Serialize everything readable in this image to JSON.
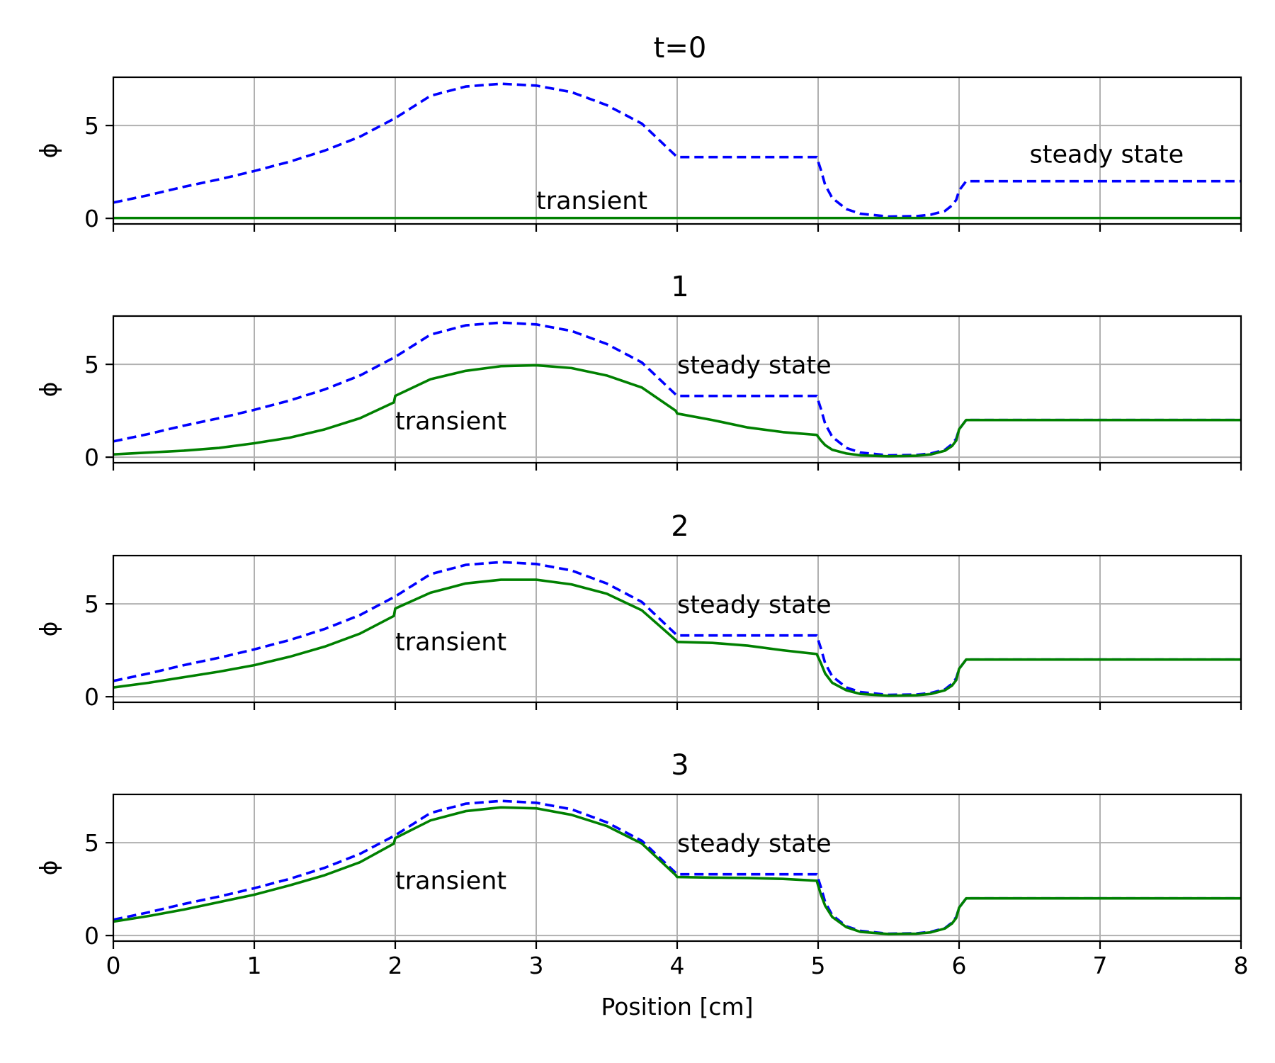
{
  "chart_data": [
    {
      "type": "line",
      "title": "t=0",
      "ylabel": "ϕ",
      "xlim": [
        0,
        8
      ],
      "ylim": [
        -0.3,
        7.6
      ],
      "xticks": [
        0,
        1,
        2,
        3,
        4,
        5,
        6,
        7,
        8
      ],
      "yticks": [
        0,
        5
      ],
      "xtick_labels_visible": false,
      "grid": true,
      "series": [
        {
          "role": "steady",
          "color": "#0000ff",
          "style": "dashed",
          "x": [
            0,
            0.25,
            0.5,
            0.75,
            1.0,
            1.25,
            1.5,
            1.75,
            2.0,
            2.25,
            2.5,
            2.75,
            3.0,
            3.25,
            3.5,
            3.75,
            4.0,
            4.5,
            4.99,
            5.02,
            5.05,
            5.1,
            5.2,
            5.3,
            5.5,
            5.7,
            5.8,
            5.9,
            5.95,
            5.98,
            6.0,
            6.05,
            6.5,
            7.0,
            7.5,
            8.0
          ],
          "y": [
            0.85,
            1.25,
            1.7,
            2.1,
            2.55,
            3.05,
            3.65,
            4.4,
            5.4,
            6.6,
            7.1,
            7.25,
            7.15,
            6.8,
            6.1,
            5.1,
            3.3,
            3.3,
            3.3,
            2.6,
            1.8,
            1.1,
            0.5,
            0.25,
            0.1,
            0.12,
            0.2,
            0.4,
            0.7,
            1.0,
            1.5,
            2.0,
            2.0,
            2.0,
            2.0,
            2.0
          ]
        },
        {
          "role": "transient",
          "color": "#008000",
          "style": "solid",
          "x": [
            0,
            8
          ],
          "y": [
            0.02,
            0.02
          ]
        }
      ],
      "annotations": [
        {
          "text": "steady state",
          "x": 6.5,
          "y": 3.0
        },
        {
          "text": "transient",
          "x": 3.0,
          "y": 0.5
        }
      ]
    },
    {
      "type": "line",
      "title": "1",
      "ylabel": "ϕ",
      "xlim": [
        0,
        8
      ],
      "ylim": [
        -0.3,
        7.6
      ],
      "xticks": [
        0,
        1,
        2,
        3,
        4,
        5,
        6,
        7,
        8
      ],
      "yticks": [
        0,
        5
      ],
      "xtick_labels_visible": false,
      "grid": true,
      "series": [
        {
          "role": "steady",
          "color": "#0000ff",
          "style": "dashed",
          "x": [
            0,
            0.25,
            0.5,
            0.75,
            1.0,
            1.25,
            1.5,
            1.75,
            2.0,
            2.25,
            2.5,
            2.75,
            3.0,
            3.25,
            3.5,
            3.75,
            4.0,
            4.5,
            4.99,
            5.02,
            5.05,
            5.1,
            5.2,
            5.3,
            5.5,
            5.7,
            5.8,
            5.9,
            5.95,
            5.98,
            6.0,
            6.05,
            6.5,
            7.0,
            7.5,
            8.0
          ],
          "y": [
            0.85,
            1.25,
            1.7,
            2.1,
            2.55,
            3.05,
            3.65,
            4.4,
            5.4,
            6.6,
            7.1,
            7.25,
            7.15,
            6.8,
            6.1,
            5.1,
            3.3,
            3.3,
            3.3,
            2.6,
            1.8,
            1.1,
            0.5,
            0.25,
            0.1,
            0.12,
            0.2,
            0.4,
            0.7,
            1.0,
            1.5,
            2.0,
            2.0,
            2.0,
            2.0,
            2.0
          ]
        },
        {
          "role": "transient",
          "color": "#008000",
          "style": "solid",
          "x": [
            0,
            0.25,
            0.5,
            0.75,
            1.0,
            1.25,
            1.5,
            1.75,
            1.99,
            2.0,
            2.25,
            2.5,
            2.75,
            3.0,
            3.25,
            3.5,
            3.75,
            3.99,
            4.0,
            4.25,
            4.5,
            4.75,
            4.99,
            5.02,
            5.05,
            5.1,
            5.2,
            5.3,
            5.5,
            5.7,
            5.8,
            5.9,
            5.95,
            5.98,
            6.0,
            6.05,
            6.5,
            7.0,
            7.5,
            8.0
          ],
          "y": [
            0.15,
            0.25,
            0.35,
            0.5,
            0.75,
            1.05,
            1.5,
            2.1,
            2.95,
            3.3,
            4.2,
            4.65,
            4.9,
            4.95,
            4.8,
            4.4,
            3.75,
            2.5,
            2.35,
            2.0,
            1.6,
            1.35,
            1.2,
            0.9,
            0.65,
            0.4,
            0.2,
            0.1,
            0.05,
            0.08,
            0.15,
            0.35,
            0.6,
            0.9,
            1.5,
            2.0,
            2.0,
            2.0,
            2.0,
            2.0
          ]
        }
      ],
      "annotations": [
        {
          "text": "steady state",
          "x": 4.0,
          "y": 4.5
        },
        {
          "text": "transient",
          "x": 2.0,
          "y": 1.5
        }
      ]
    },
    {
      "type": "line",
      "title": "2",
      "ylabel": "ϕ",
      "xlim": [
        0,
        8
      ],
      "ylim": [
        -0.3,
        7.6
      ],
      "xticks": [
        0,
        1,
        2,
        3,
        4,
        5,
        6,
        7,
        8
      ],
      "yticks": [
        0,
        5
      ],
      "xtick_labels_visible": false,
      "grid": true,
      "series": [
        {
          "role": "steady",
          "color": "#0000ff",
          "style": "dashed",
          "x": [
            0,
            0.25,
            0.5,
            0.75,
            1.0,
            1.25,
            1.5,
            1.75,
            2.0,
            2.25,
            2.5,
            2.75,
            3.0,
            3.25,
            3.5,
            3.75,
            4.0,
            4.5,
            4.99,
            5.02,
            5.05,
            5.1,
            5.2,
            5.3,
            5.5,
            5.7,
            5.8,
            5.9,
            5.95,
            5.98,
            6.0,
            6.05,
            6.5,
            7.0,
            7.5,
            8.0
          ],
          "y": [
            0.85,
            1.25,
            1.7,
            2.1,
            2.55,
            3.05,
            3.65,
            4.4,
            5.4,
            6.6,
            7.1,
            7.25,
            7.15,
            6.8,
            6.1,
            5.1,
            3.3,
            3.3,
            3.3,
            2.6,
            1.8,
            1.1,
            0.5,
            0.25,
            0.1,
            0.12,
            0.2,
            0.4,
            0.7,
            1.0,
            1.5,
            2.0,
            2.0,
            2.0,
            2.0,
            2.0
          ]
        },
        {
          "role": "transient",
          "color": "#008000",
          "style": "solid",
          "x": [
            0,
            0.25,
            0.5,
            0.75,
            1.0,
            1.25,
            1.5,
            1.75,
            1.99,
            2.0,
            2.25,
            2.5,
            2.75,
            3.0,
            3.25,
            3.5,
            3.75,
            3.99,
            4.0,
            4.25,
            4.5,
            4.75,
            4.99,
            5.02,
            5.05,
            5.1,
            5.2,
            5.3,
            5.5,
            5.7,
            5.8,
            5.9,
            5.95,
            5.98,
            6.0,
            6.05,
            6.5,
            7.0,
            7.5,
            8.0
          ],
          "y": [
            0.5,
            0.75,
            1.05,
            1.35,
            1.7,
            2.15,
            2.7,
            3.4,
            4.35,
            4.75,
            5.6,
            6.1,
            6.3,
            6.3,
            6.05,
            5.55,
            4.65,
            3.05,
            2.95,
            2.9,
            2.75,
            2.5,
            2.3,
            1.8,
            1.25,
            0.75,
            0.35,
            0.15,
            0.05,
            0.08,
            0.15,
            0.35,
            0.6,
            0.9,
            1.5,
            2.0,
            2.0,
            2.0,
            2.0,
            2.0
          ]
        }
      ],
      "annotations": [
        {
          "text": "steady state",
          "x": 4.0,
          "y": 4.5
        },
        {
          "text": "transient",
          "x": 2.0,
          "y": 2.5
        }
      ]
    },
    {
      "type": "line",
      "title": "3",
      "ylabel": "ϕ",
      "xlabel": "Position [cm]",
      "xlim": [
        0,
        8
      ],
      "ylim": [
        -0.3,
        7.6
      ],
      "xticks": [
        0,
        1,
        2,
        3,
        4,
        5,
        6,
        7,
        8
      ],
      "yticks": [
        0,
        5
      ],
      "xtick_labels_visible": true,
      "grid": true,
      "series": [
        {
          "role": "steady",
          "color": "#0000ff",
          "style": "dashed",
          "x": [
            0,
            0.25,
            0.5,
            0.75,
            1.0,
            1.25,
            1.5,
            1.75,
            2.0,
            2.25,
            2.5,
            2.75,
            3.0,
            3.25,
            3.5,
            3.75,
            4.0,
            4.5,
            4.99,
            5.02,
            5.05,
            5.1,
            5.2,
            5.3,
            5.5,
            5.7,
            5.8,
            5.9,
            5.95,
            5.98,
            6.0,
            6.05,
            6.5,
            7.0,
            7.5,
            8.0
          ],
          "y": [
            0.85,
            1.25,
            1.7,
            2.1,
            2.55,
            3.05,
            3.65,
            4.4,
            5.4,
            6.6,
            7.1,
            7.25,
            7.15,
            6.8,
            6.1,
            5.1,
            3.3,
            3.3,
            3.3,
            2.6,
            1.8,
            1.1,
            0.5,
            0.25,
            0.1,
            0.12,
            0.2,
            0.4,
            0.7,
            1.0,
            1.5,
            2.0,
            2.0,
            2.0,
            2.0,
            2.0
          ]
        },
        {
          "role": "transient",
          "color": "#008000",
          "style": "solid",
          "x": [
            0,
            0.25,
            0.5,
            0.75,
            1.0,
            1.25,
            1.5,
            1.75,
            1.99,
            2.0,
            2.25,
            2.5,
            2.75,
            3.0,
            3.25,
            3.5,
            3.75,
            3.99,
            4.0,
            4.25,
            4.5,
            4.75,
            4.99,
            5.02,
            5.05,
            5.1,
            5.2,
            5.3,
            5.5,
            5.7,
            5.8,
            5.9,
            5.95,
            5.98,
            6.0,
            6.05,
            6.5,
            7.0,
            7.5,
            8.0
          ],
          "y": [
            0.75,
            1.05,
            1.4,
            1.8,
            2.2,
            2.7,
            3.25,
            3.95,
            4.95,
            5.25,
            6.2,
            6.7,
            6.9,
            6.85,
            6.5,
            5.9,
            4.95,
            3.25,
            3.15,
            3.12,
            3.1,
            3.05,
            2.95,
            2.2,
            1.6,
            1.0,
            0.45,
            0.2,
            0.08,
            0.1,
            0.17,
            0.38,
            0.65,
            0.95,
            1.5,
            2.0,
            2.0,
            2.0,
            2.0,
            2.0
          ]
        }
      ],
      "annotations": [
        {
          "text": "steady state",
          "x": 4.0,
          "y": 4.5
        },
        {
          "text": "transient",
          "x": 2.0,
          "y": 2.5
        }
      ]
    }
  ]
}
